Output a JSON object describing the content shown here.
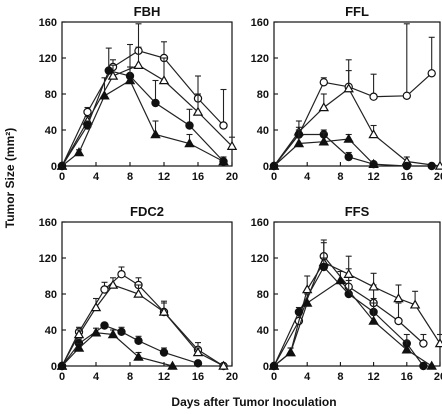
{
  "chart_data": {
    "type": "line",
    "ylabel": "Tumor Size (mm²)",
    "xlabel": "Days after Tumor Inoculation",
    "xticks": [
      0,
      4,
      8,
      12,
      16,
      20
    ],
    "yticks": [
      0,
      40,
      80,
      120,
      160
    ],
    "xlim": [
      0,
      20
    ],
    "ylim": [
      0,
      160
    ],
    "grid": false,
    "legend": "none",
    "panels": [
      {
        "title": "FBH",
        "series": [
          {
            "marker": "open-circle",
            "x": [
              0,
              3,
              6,
              9,
              12,
              16,
              19
            ],
            "y": [
              0,
              60,
              110,
              128,
              120,
              75,
              45
            ],
            "err": [
              0,
              5,
              8,
              30,
              18,
              25,
              40
            ]
          },
          {
            "marker": "open-triangle",
            "x": [
              0,
              3,
              6,
              9,
              12,
              16,
              20
            ],
            "y": [
              0,
              50,
              100,
              112,
              95,
              60,
              22
            ],
            "err": [
              0,
              5,
              12,
              20,
              25,
              20,
              10
            ]
          },
          {
            "marker": "filled-circle",
            "x": [
              0,
              3,
              5.5,
              8,
              11,
              15,
              19
            ],
            "y": [
              0,
              45,
              106,
              100,
              70,
              45,
              5
            ],
            "err": [
              0,
              5,
              25,
              35,
              25,
              18,
              5
            ]
          },
          {
            "marker": "filled-triangle",
            "x": [
              0,
              2,
              5,
              8,
              11,
              15,
              19
            ],
            "y": [
              0,
              15,
              78,
              95,
              35,
              25,
              5
            ],
            "err": [
              0,
              3,
              20,
              15,
              15,
              10,
              5
            ]
          }
        ]
      },
      {
        "title": "FFL",
        "series": [
          {
            "marker": "open-circle",
            "x": [
              0,
              3,
              6,
              9,
              12,
              16,
              19
            ],
            "y": [
              0,
              35,
              93,
              88,
              77,
              78,
              103
            ],
            "err": [
              0,
              8,
              5,
              30,
              25,
              80,
              40
            ]
          },
          {
            "marker": "open-triangle",
            "x": [
              0,
              3,
              6,
              9,
              12,
              16,
              20
            ],
            "y": [
              0,
              38,
              65,
              86,
              35,
              5,
              0
            ],
            "err": [
              0,
              12,
              15,
              20,
              10,
              5,
              0
            ]
          },
          {
            "marker": "filled-circle",
            "x": [
              0,
              3,
              6,
              9,
              12,
              16,
              19
            ],
            "y": [
              0,
              35,
              35,
              10,
              2,
              0,
              0
            ],
            "err": [
              0,
              5,
              5,
              5,
              2,
              0,
              0
            ]
          },
          {
            "marker": "filled-triangle",
            "x": [
              0,
              3,
              6,
              9,
              12
            ],
            "y": [
              0,
              25,
              27,
              30,
              2
            ],
            "err": [
              0,
              15,
              10,
              5,
              2
            ]
          }
        ]
      },
      {
        "title": "FDC2",
        "series": [
          {
            "marker": "open-circle",
            "x": [
              0,
              2,
              5,
              7,
              9,
              12,
              16,
              19
            ],
            "y": [
              0,
              38,
              85,
              102,
              90,
              60,
              18,
              0
            ],
            "err": [
              0,
              5,
              8,
              8,
              8,
              10,
              8,
              0
            ]
          },
          {
            "marker": "open-triangle",
            "x": [
              0,
              2,
              4,
              6,
              9,
              12,
              16,
              19
            ],
            "y": [
              0,
              35,
              65,
              90,
              80,
              60,
              15,
              0
            ],
            "err": [
              0,
              5,
              10,
              8,
              10,
              12,
              5,
              0
            ]
          },
          {
            "marker": "filled-circle",
            "x": [
              0,
              2,
              5,
              7,
              9,
              12,
              16
            ],
            "y": [
              0,
              25,
              45,
              38,
              28,
              15,
              3
            ],
            "err": [
              0,
              5,
              3,
              5,
              5,
              5,
              2
            ]
          },
          {
            "marker": "filled-triangle",
            "x": [
              0,
              2,
              4,
              6,
              9,
              13
            ],
            "y": [
              0,
              20,
              37,
              35,
              10,
              0
            ],
            "err": [
              0,
              5,
              5,
              5,
              5,
              0
            ]
          }
        ]
      },
      {
        "title": "FFS",
        "series": [
          {
            "marker": "open-circle",
            "x": [
              0,
              3,
              6,
              9,
              12,
              15,
              18
            ],
            "y": [
              0,
              50,
              122,
              88,
              70,
              50,
              25
            ],
            "err": [
              0,
              10,
              15,
              20,
              20,
              20,
              10
            ]
          },
          {
            "marker": "open-triangle",
            "x": [
              0,
              2,
              4,
              6,
              9,
              12,
              15,
              17,
              20
            ],
            "y": [
              0,
              15,
              85,
              115,
              102,
              88,
              75,
              68,
              25
            ],
            "err": [
              0,
              5,
              15,
              25,
              20,
              15,
              15,
              15,
              10
            ]
          },
          {
            "marker": "filled-circle",
            "x": [
              0,
              3,
              6,
              9,
              12,
              16,
              18
            ],
            "y": [
              0,
              60,
              110,
              80,
              60,
              25,
              0
            ],
            "err": [
              0,
              5,
              10,
              15,
              15,
              10,
              0
            ]
          },
          {
            "marker": "filled-triangle",
            "x": [
              0,
              2,
              4,
              8,
              12,
              16,
              19
            ],
            "y": [
              0,
              15,
              70,
              95,
              50,
              18,
              0
            ],
            "err": [
              0,
              5,
              10,
              10,
              20,
              10,
              0
            ]
          }
        ]
      }
    ]
  }
}
